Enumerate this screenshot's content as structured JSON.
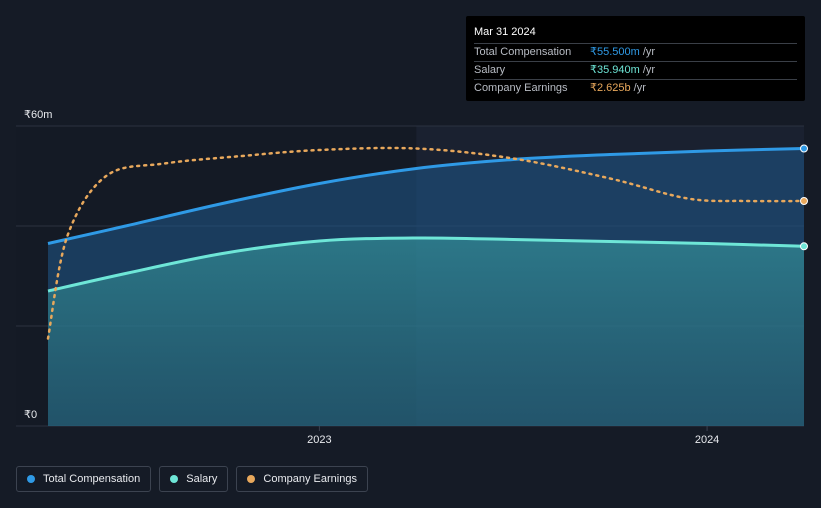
{
  "tooltip": {
    "date": "Mar 31 2024",
    "rows": [
      {
        "label": "Total Compensation",
        "value": "₹55.500m",
        "unit": "/yr",
        "color": "#2f9ae6"
      },
      {
        "label": "Salary",
        "value": "₹35.940m",
        "unit": "/yr",
        "color": "#6ee6d7"
      },
      {
        "label": "Company Earnings",
        "value": "₹2.625b",
        "unit": "/yr",
        "color": "#e8a85c"
      }
    ]
  },
  "legend": [
    {
      "label": "Total Compensation",
      "color": "#2f9ae6"
    },
    {
      "label": "Salary",
      "color": "#6ee6d7"
    },
    {
      "label": "Company Earnings",
      "color": "#e8a85c"
    }
  ],
  "chart_data": {
    "type": "line",
    "ylabel_top": "₹60m",
    "ylabel_bottom": "₹0",
    "ylim": [
      0,
      60
    ],
    "xlim": [
      2022.3,
      2024.25
    ],
    "x_ticks": [
      {
        "value": 2023.0,
        "label": "2023"
      },
      {
        "value": 2024.0,
        "label": "2024"
      }
    ],
    "highlight_start": 2023.25,
    "series": [
      {
        "name": "Total Compensation",
        "color": "#2f9ae6",
        "x": [
          2022.3,
          2022.5,
          2022.75,
          2023.0,
          2023.25,
          2023.5,
          2023.75,
          2024.0,
          2024.25
        ],
        "values": [
          36.5,
          40.0,
          44.5,
          48.5,
          51.5,
          53.3,
          54.3,
          55.0,
          55.5
        ]
      },
      {
        "name": "Salary",
        "color": "#6ee6d7",
        "x": [
          2022.3,
          2022.5,
          2022.75,
          2023.0,
          2023.25,
          2023.5,
          2023.75,
          2024.0,
          2024.25
        ],
        "values": [
          27.0,
          30.5,
          34.5,
          37.0,
          37.6,
          37.3,
          36.9,
          36.5,
          35.94
        ]
      },
      {
        "name": "Company Earnings",
        "color": "#e8a85c",
        "dashed": true,
        "x": [
          2022.3,
          2022.35,
          2022.45,
          2022.6,
          2022.8,
          2023.0,
          2023.25,
          2023.5,
          2023.75,
          2023.95,
          2024.1,
          2024.25
        ],
        "values": [
          17.5,
          38.0,
          50.0,
          52.5,
          54.0,
          55.2,
          55.5,
          53.5,
          49.5,
          45.5,
          45.0,
          45.0
        ]
      }
    ]
  }
}
